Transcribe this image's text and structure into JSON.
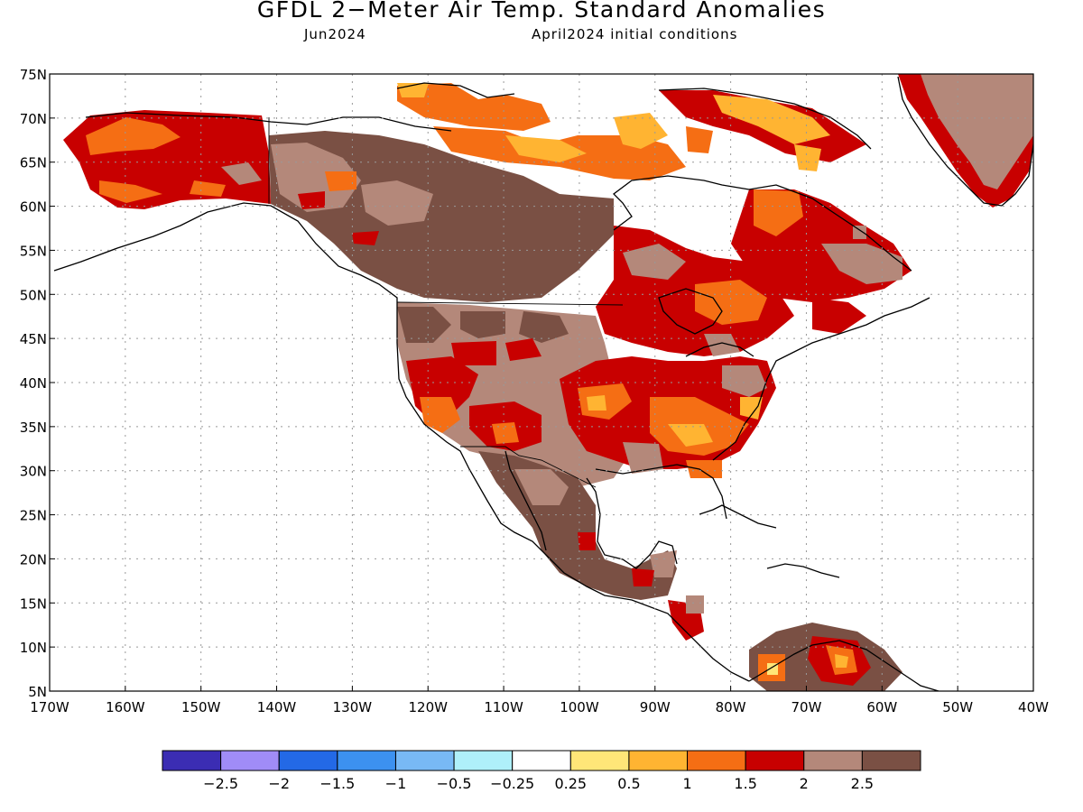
{
  "title": "GFDL 2−Meter Air Temp. Standard Anomalies",
  "valid_month": "Jun2024",
  "initial_conditions": "April2024 initial conditions",
  "map": {
    "lat_labels": [
      "5N",
      "10N",
      "15N",
      "20N",
      "25N",
      "30N",
      "35N",
      "40N",
      "45N",
      "50N",
      "55N",
      "60N",
      "65N",
      "70N",
      "75N"
    ],
    "lon_labels": [
      "170W",
      "160W",
      "150W",
      "140W",
      "130W",
      "120W",
      "110W",
      "100W",
      "90W",
      "80W",
      "70W",
      "60W",
      "50W",
      "40W"
    ],
    "lon_range": [
      -170,
      -40
    ],
    "lat_range": [
      5,
      75
    ]
  },
  "colorbar": {
    "colors": [
      "#3b2db3",
      "#a08cf7",
      "#2369e6",
      "#3c91f0",
      "#78b9f5",
      "#aff0fa",
      "#ffffff",
      "#ffe678",
      "#ffb432",
      "#f56e14",
      "#c80000",
      "#b4887a",
      "#7a5044"
    ],
    "labels": [
      "−2.5",
      "−2",
      "−1.5",
      "−1",
      "−0.5",
      "−0.25",
      "0.25",
      "0.5",
      "1",
      "1.5",
      "2",
      "2.5"
    ]
  }
}
